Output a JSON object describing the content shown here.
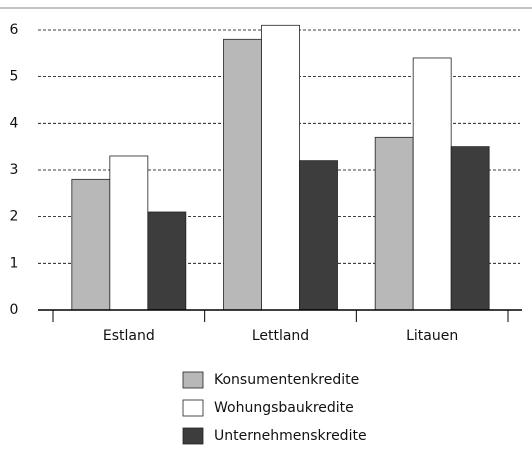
{
  "chart_data": {
    "type": "bar",
    "categories": [
      "Estland",
      "Lettland",
      "Litauen"
    ],
    "series": [
      {
        "name": "Konsumentenkredite",
        "color": "#b8b8b8",
        "values": [
          2.8,
          5.8,
          3.7
        ]
      },
      {
        "name": "Wohungsbaukredite",
        "color": "#ffffff",
        "values": [
          3.3,
          6.1,
          5.4
        ]
      },
      {
        "name": "Unternehmenskredite",
        "color": "#3d3d3d",
        "values": [
          2.1,
          3.2,
          3.5
        ]
      }
    ],
    "ylim": [
      0,
      6.4
    ],
    "yticks": [
      0,
      1,
      2,
      3,
      4,
      5,
      6
    ],
    "grid": true
  }
}
